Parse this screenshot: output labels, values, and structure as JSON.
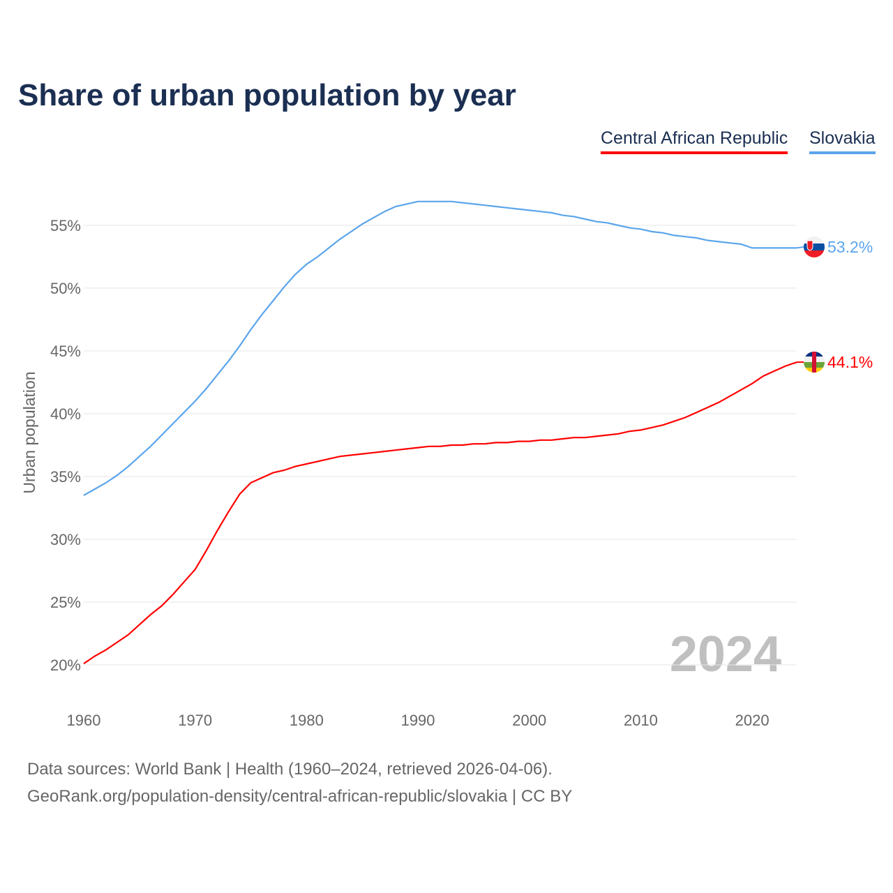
{
  "chart_data": {
    "type": "line",
    "title": "Share of urban population by year",
    "ylabel": "Urban population",
    "xlabel": "",
    "xlim": [
      1960,
      2024
    ],
    "ylim": [
      20,
      57
    ],
    "x_ticks": [
      "1960",
      "1970",
      "1980",
      "1990",
      "2000",
      "2010",
      "2020"
    ],
    "y_ticks": [
      {
        "v": 20,
        "label": "20%"
      },
      {
        "v": 25,
        "label": "25%"
      },
      {
        "v": 30,
        "label": "30%"
      },
      {
        "v": 35,
        "label": "35%"
      },
      {
        "v": 40,
        "label": "40%"
      },
      {
        "v": 45,
        "label": "45%"
      },
      {
        "v": 50,
        "label": "50%"
      },
      {
        "v": 55,
        "label": "55%"
      }
    ],
    "grid": true,
    "legend_placement": "top-right",
    "year_watermark": "2024",
    "x_start": 1960,
    "series": [
      {
        "name": "Central African Republic",
        "color": "#ff0000",
        "end_label": "44.1%",
        "values": [
          20.1,
          20.7,
          21.2,
          21.8,
          22.4,
          23.2,
          24.0,
          24.7,
          25.6,
          26.6,
          27.6,
          29.1,
          30.7,
          32.2,
          33.6,
          34.5,
          34.9,
          35.3,
          35.5,
          35.8,
          36.0,
          36.2,
          36.4,
          36.6,
          36.7,
          36.8,
          36.9,
          37.0,
          37.1,
          37.2,
          37.3,
          37.4,
          37.4,
          37.5,
          37.5,
          37.6,
          37.6,
          37.7,
          37.7,
          37.8,
          37.8,
          37.9,
          37.9,
          38.0,
          38.1,
          38.1,
          38.2,
          38.3,
          38.4,
          38.6,
          38.7,
          38.9,
          39.1,
          39.4,
          39.7,
          40.1,
          40.5,
          40.9,
          41.4,
          41.9,
          42.4,
          43.0,
          43.4,
          43.8,
          44.1
        ]
      },
      {
        "name": "Slovakia",
        "color": "#5ba5ec",
        "end_label": "53.2%",
        "values": [
          33.5,
          34.0,
          34.5,
          35.1,
          35.8,
          36.6,
          37.4,
          38.3,
          39.2,
          40.1,
          41.0,
          42.0,
          43.1,
          44.2,
          45.4,
          46.7,
          47.9,
          49.0,
          50.1,
          51.1,
          51.9,
          52.5,
          53.2,
          53.9,
          54.5,
          55.1,
          55.6,
          56.1,
          56.5,
          56.7,
          56.9,
          56.9,
          56.9,
          56.9,
          56.8,
          56.7,
          56.6,
          56.5,
          56.4,
          56.3,
          56.2,
          56.1,
          56.0,
          55.8,
          55.7,
          55.5,
          55.3,
          55.2,
          55.0,
          54.8,
          54.7,
          54.5,
          54.4,
          54.2,
          54.1,
          54.0,
          53.8,
          53.7,
          53.6,
          53.5,
          53.2,
          53.2,
          53.2,
          53.2,
          53.2
        ]
      }
    ]
  },
  "footer": {
    "line1": "Data sources: World Bank | Health (1960–2024, retrieved 2026-04-06).",
    "line2": "GeoRank.org/population-density/central-african-republic/slovakia | CC BY"
  }
}
